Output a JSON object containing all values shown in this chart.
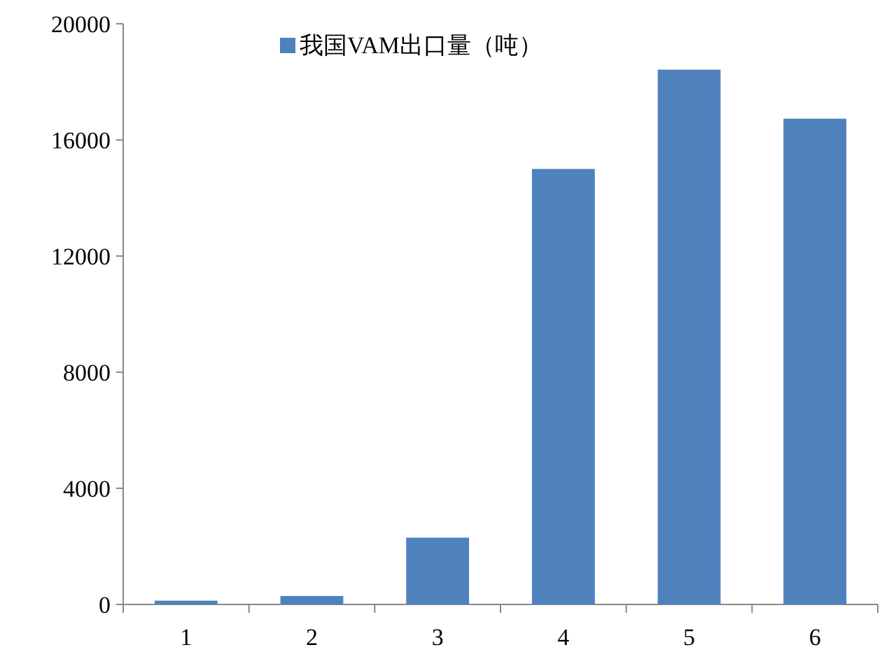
{
  "chart_data": {
    "type": "bar",
    "categories": [
      "1",
      "2",
      "3",
      "4",
      "5",
      "6"
    ],
    "series": [
      {
        "name": "我国VAM出口量（吨）",
        "color": "#4f81bd",
        "values": [
          130,
          290,
          2300,
          15000,
          18420,
          16730
        ]
      }
    ],
    "ylim": [
      0,
      20000
    ],
    "yticks": [
      0,
      4000,
      8000,
      12000,
      16000,
      20000
    ],
    "grid": false,
    "legend": "top"
  }
}
